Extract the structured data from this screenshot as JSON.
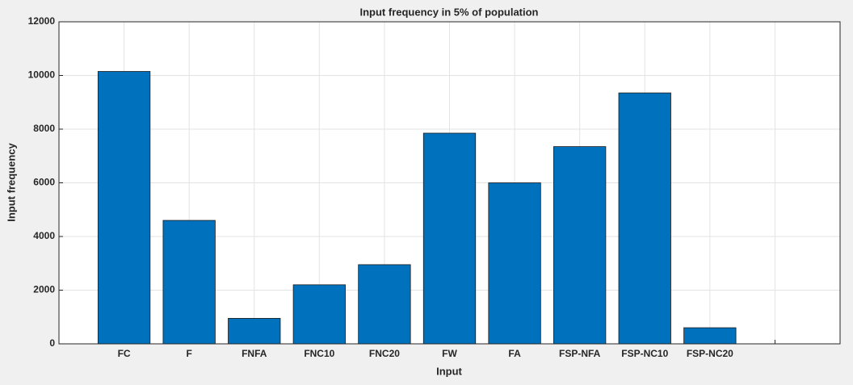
{
  "chart_data": {
    "type": "bar",
    "title": "Input frequency in 5% of population",
    "x_label": "Input",
    "y_label": "Input frequency",
    "categories": [
      "FC",
      "F",
      "FNFA",
      "FNC10",
      "FNC20",
      "FW",
      "FA",
      "FSP-NFA",
      "FSP-NC10",
      "FSP-NC20",
      null
    ],
    "values": [
      10150,
      4600,
      950,
      2200,
      2950,
      7850,
      6000,
      7350,
      9350,
      600,
      null
    ],
    "color": "#0072bd",
    "ylim": [
      0,
      12000
    ],
    "yticks": [
      0,
      2000,
      4000,
      6000,
      8000,
      10000,
      12000
    ],
    "grid": true
  }
}
